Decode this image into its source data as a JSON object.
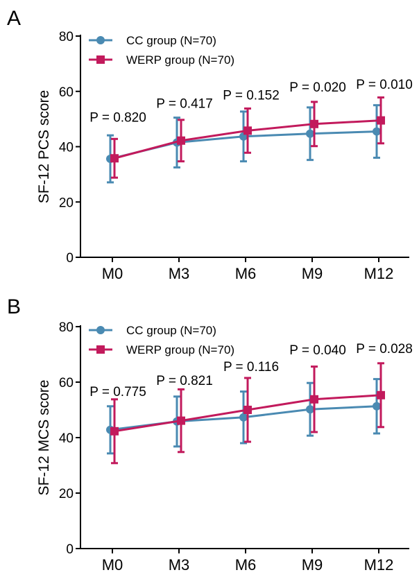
{
  "chart_data": [
    {
      "panel": "A",
      "type": "line",
      "ylabel": "SF-12 PCS score",
      "xlabel": "",
      "categories": [
        "M0",
        "M3",
        "M6",
        "M9",
        "M12"
      ],
      "ylim": [
        0,
        80
      ],
      "yticks": [
        0,
        20,
        40,
        60,
        80
      ],
      "legend_position": "top-left",
      "series": [
        {
          "name": "CC group (N=70)",
          "color": "#4a8ab2",
          "marker": "circle",
          "values": [
            35.6,
            41.5,
            43.7,
            44.7,
            45.5
          ],
          "error": [
            8.5,
            9.0,
            9.0,
            9.5,
            9.5
          ]
        },
        {
          "name": "WERP group (N=70)",
          "color": "#c21a5c",
          "marker": "square",
          "values": [
            35.8,
            42.2,
            45.8,
            48.2,
            49.5
          ],
          "error": [
            7.0,
            7.5,
            8.0,
            8.0,
            8.3
          ]
        }
      ],
      "annotations": [
        {
          "category": "M0",
          "text": "P = 0.820",
          "y": 49.0
        },
        {
          "category": "M3",
          "text": "P = 0.417",
          "y": 54.0
        },
        {
          "category": "M6",
          "text": "P = 0.152",
          "y": 57.0
        },
        {
          "category": "M9",
          "text": "P = 0.020",
          "y": 60.0
        },
        {
          "category": "M12",
          "text": "P = 0.010",
          "y": 61.0
        }
      ]
    },
    {
      "panel": "B",
      "type": "line",
      "ylabel": "SF-12 MCS score",
      "xlabel": "",
      "categories": [
        "M0",
        "M3",
        "M6",
        "M9",
        "M12"
      ],
      "ylim": [
        0,
        80
      ],
      "yticks": [
        0,
        20,
        40,
        60,
        80
      ],
      "legend_position": "top-left",
      "series": [
        {
          "name": "CC group (N=70)",
          "color": "#4a8ab2",
          "marker": "circle",
          "values": [
            42.8,
            45.8,
            47.3,
            50.2,
            51.3
          ],
          "error": [
            8.5,
            9.0,
            9.3,
            9.5,
            9.8
          ]
        },
        {
          "name": "WERP group (N=70)",
          "color": "#c21a5c",
          "marker": "square",
          "values": [
            42.3,
            46.1,
            50.0,
            53.8,
            55.3
          ],
          "error": [
            11.5,
            11.3,
            11.5,
            11.8,
            11.5
          ]
        }
      ],
      "annotations": [
        {
          "category": "M0",
          "text": "P = 0.775",
          "y": 55.0
        },
        {
          "category": "M3",
          "text": "P = 0.821",
          "y": 59.0
        },
        {
          "category": "M6",
          "text": "P = 0.116",
          "y": 64.0
        },
        {
          "category": "M9",
          "text": "P = 0.040",
          "y": 70.0
        },
        {
          "category": "M12",
          "text": "P = 0.028",
          "y": 70.5
        }
      ]
    }
  ]
}
